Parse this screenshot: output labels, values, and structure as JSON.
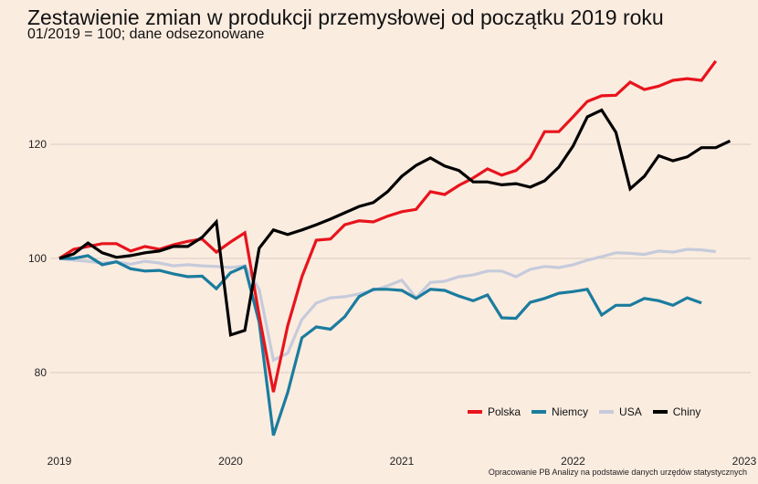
{
  "chart_data": {
    "type": "line",
    "title": "Zestawienie zmian w produkcji przemysłowej od początku 2019 roku",
    "subtitle": "01/2019 = 100; dane odsezonowane",
    "caption": "Opracowanie PB Analizy na podstawie danych urzędów statystycznych",
    "xlabel": "",
    "ylabel": "",
    "x_start": "2019-01",
    "x_unit": "month",
    "xlim": [
      0,
      48
    ],
    "ylim": [
      68,
      138
    ],
    "x_ticks": [
      {
        "label": "2019",
        "month_index": 0
      },
      {
        "label": "2020",
        "month_index": 12
      },
      {
        "label": "2021",
        "month_index": 24
      },
      {
        "label": "2022",
        "month_index": 36
      },
      {
        "label": "2023",
        "month_index": 48
      }
    ],
    "y_ticks": [
      {
        "label": "80",
        "value": 80
      },
      {
        "label": "100",
        "value": 100
      },
      {
        "label": "120",
        "value": 120
      }
    ],
    "grid": "horizontal",
    "legend_position": "bottom-right",
    "series": [
      {
        "name": "Polska",
        "color": "#e8141c",
        "values": [
          100,
          101.6,
          102.1,
          102.6,
          102.6,
          101.3,
          102.1,
          101.6,
          102.4,
          103.0,
          103.4,
          101.1,
          102.9,
          104.5,
          90.0,
          76.6,
          88.2,
          96.8,
          103.2,
          103.4,
          105.9,
          106.6,
          106.4,
          107.4,
          108.2,
          108.6,
          111.7,
          111.2,
          112.8,
          114.1,
          115.7,
          114.6,
          115.4,
          117.6,
          122.2,
          122.2,
          124.8,
          127.5,
          128.5,
          128.6,
          130.9,
          129.6,
          130.2,
          131.2,
          131.5,
          131.2,
          134.6
        ]
      },
      {
        "name": "Niemcy",
        "color": "#1b7c9e",
        "values": [
          100,
          100.0,
          100.5,
          98.9,
          99.4,
          98.2,
          97.8,
          97.9,
          97.3,
          96.8,
          96.9,
          94.7,
          97.5,
          98.6,
          88.8,
          69.0,
          76.5,
          86.1,
          88.0,
          87.6,
          89.8,
          93.3,
          94.6,
          94.6,
          94.4,
          93.0,
          94.6,
          94.4,
          93.4,
          92.6,
          93.6,
          89.6,
          89.5,
          92.3,
          93.0,
          93.9,
          94.2,
          94.6,
          90.1,
          91.8,
          91.8,
          93.0,
          92.6,
          91.8,
          93.1,
          92.2
        ]
      },
      {
        "name": "USA",
        "color": "#c6cbdb",
        "values": [
          100,
          99.7,
          99.5,
          99.2,
          99.4,
          99.0,
          99.5,
          99.2,
          98.7,
          98.9,
          98.7,
          98.6,
          98.4,
          98.7,
          94.6,
          82.2,
          83.4,
          89.3,
          92.2,
          93.1,
          93.3,
          93.8,
          94.4,
          95.2,
          96.2,
          93.1,
          95.8,
          96.0,
          96.8,
          97.1,
          97.8,
          97.8,
          96.8,
          98.1,
          98.6,
          98.4,
          98.9,
          99.7,
          100.3,
          101.0,
          100.9,
          100.7,
          101.3,
          101.1,
          101.6,
          101.5,
          101.2
        ]
      },
      {
        "name": "Chiny",
        "color": "#000000",
        "values": [
          100,
          100.8,
          102.7,
          101.0,
          100.2,
          100.5,
          101.0,
          101.3,
          102.1,
          102.1,
          103.7,
          106.4,
          86.6,
          87.4,
          101.8,
          105.0,
          104.2,
          105.0,
          105.9,
          106.9,
          108.0,
          109.1,
          109.8,
          111.7,
          114.4,
          116.3,
          117.6,
          116.2,
          115.4,
          113.4,
          113.4,
          112.9,
          113.1,
          112.5,
          113.6,
          116.0,
          119.7,
          124.8,
          126.0,
          122.1,
          112.2,
          114.4,
          118.0,
          117.1,
          117.8,
          119.4,
          119.4,
          120.6
        ]
      }
    ]
  }
}
